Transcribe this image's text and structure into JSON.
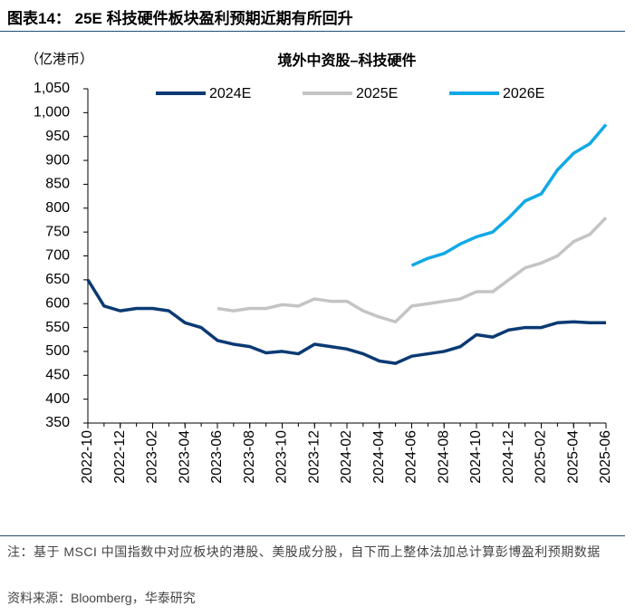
{
  "header": {
    "title": "图表14：  25E 科技硬件板块盈利预期近期有所回升"
  },
  "chart_data": {
    "type": "line",
    "title": "境外中资股–科技硬件",
    "y_unit": "（亿港币）",
    "x": [
      "2022-10",
      "2022-11",
      "2022-12",
      "2023-01",
      "2023-02",
      "2023-03",
      "2023-04",
      "2023-05",
      "2023-06",
      "2023-07",
      "2023-08",
      "2023-09",
      "2023-10",
      "2023-11",
      "2023-12",
      "2024-01",
      "2024-02",
      "2024-03",
      "2024-04",
      "2024-05",
      "2024-06",
      "2024-07",
      "2024-08",
      "2024-09",
      "2024-10",
      "2024-11",
      "2024-12",
      "2025-01",
      "2025-02",
      "2025-03",
      "2025-04",
      "2025-05",
      "2025-06"
    ],
    "xticks": [
      "2022-10",
      "2022-12",
      "2023-02",
      "2023-04",
      "2023-06",
      "2023-08",
      "2023-10",
      "2023-12",
      "2024-02",
      "2024-04",
      "2024-06",
      "2024-08",
      "2024-10",
      "2024-12",
      "2025-02",
      "2025-04",
      "2025-06"
    ],
    "ylim": [
      350,
      1050
    ],
    "yticks": [
      350,
      400,
      450,
      500,
      550,
      600,
      650,
      700,
      750,
      800,
      850,
      900,
      950,
      {
        "value": 1000,
        "label": "1,000"
      },
      {
        "value": 1050,
        "label": "1,050"
      }
    ],
    "series": [
      {
        "name": "2024E",
        "color": "#0b3a73",
        "values": [
          650,
          595,
          585,
          590,
          590,
          585,
          560,
          550,
          523,
          515,
          510,
          497,
          500,
          495,
          515,
          510,
          505,
          495,
          480,
          475,
          490,
          495,
          500,
          510,
          535,
          530,
          545,
          550,
          550,
          560,
          562,
          560,
          560
        ]
      },
      {
        "name": "2025E",
        "color": "#c4c4c4",
        "values": [
          null,
          null,
          null,
          null,
          null,
          null,
          null,
          null,
          590,
          585,
          590,
          590,
          598,
          595,
          610,
          605,
          605,
          585,
          572,
          562,
          595,
          600,
          605,
          610,
          625,
          625,
          650,
          675,
          685,
          700,
          730,
          745,
          780
        ]
      },
      {
        "name": "2026E",
        "color": "#10a9e6",
        "values": [
          null,
          null,
          null,
          null,
          null,
          null,
          null,
          null,
          null,
          null,
          null,
          null,
          null,
          null,
          null,
          null,
          null,
          null,
          null,
          null,
          680,
          695,
          705,
          725,
          740,
          750,
          780,
          815,
          830,
          880,
          915,
          935,
          975
        ]
      }
    ]
  },
  "footer": {
    "note": "注：基于 MSCI 中国指数中对应板块的港股、美股成分股，自下而上整体法加总计算彭博盈利预期数据",
    "source": "资料来源：Bloomberg，华泰研究"
  }
}
